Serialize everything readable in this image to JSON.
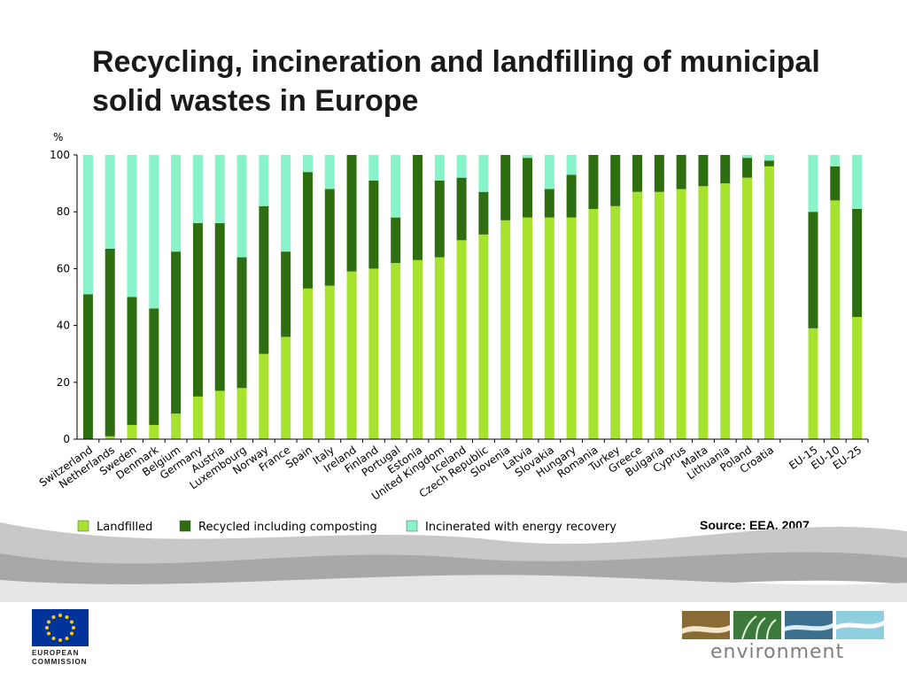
{
  "slide": {
    "title": "Recycling, incineration and landfilling of municipal solid wastes in Europe",
    "source": "Source: EEA, 2007."
  },
  "chart_data": {
    "type": "bar",
    "stacked": true,
    "ylabel": "%",
    "ylim": [
      0,
      100
    ],
    "yticks": [
      0,
      20,
      40,
      60,
      80,
      100
    ],
    "grid": false,
    "legend_position": "bottom-left",
    "categories": [
      "Switzerland",
      "Netherlands",
      "Sweden",
      "Denmark",
      "Belgium",
      "Germany",
      "Austria",
      "Luxembourg",
      "Norway",
      "France",
      "Spain",
      "Italy",
      "Ireland",
      "Finland",
      "Portugal",
      "Estonia",
      "United Kingdom",
      "Iceland",
      "Czech Republic",
      "Slovenia",
      "Latvia",
      "Slovakia",
      "Hungary",
      "Romania",
      "Turkey",
      "Greece",
      "Bulgaria",
      "Cyprus",
      "Malta",
      "Lithuania",
      "Poland",
      "Croatia",
      "",
      "EU-15",
      "EU-10",
      "EU-25"
    ],
    "series": [
      {
        "name": "Landfilled",
        "color": "#a6e22e",
        "values": [
          0,
          1,
          5,
          5,
          9,
          15,
          17,
          18,
          30,
          36,
          53,
          54,
          59,
          60,
          62,
          63,
          64,
          70,
          72,
          77,
          78,
          78,
          78,
          81,
          82,
          87,
          87,
          88,
          89,
          90,
          92,
          96,
          null,
          39,
          84,
          43
        ]
      },
      {
        "name": "Recycled including composting",
        "color": "#2e6e11",
        "values": [
          51,
          66,
          45,
          41,
          57,
          61,
          59,
          46,
          52,
          30,
          41,
          34,
          41,
          31,
          16,
          37,
          27,
          22,
          15,
          23,
          21,
          10,
          15,
          19,
          18,
          13,
          13,
          12,
          11,
          10,
          7,
          2,
          null,
          41,
          12,
          38
        ]
      },
      {
        "name": "Incinerated with energy recovery",
        "color": "#88f2c8",
        "values": [
          49,
          33,
          50,
          54,
          34,
          24,
          24,
          36,
          18,
          34,
          6,
          12,
          0,
          9,
          22,
          0,
          9,
          8,
          13,
          0,
          1,
          12,
          7,
          0,
          0,
          0,
          0,
          0,
          0,
          0,
          1,
          2,
          null,
          20,
          4,
          19
        ]
      }
    ]
  },
  "logos": {
    "ec": {
      "line1": "EUROPEAN",
      "line2": "COMMISSION",
      "flag_color": "#003399",
      "star_color": "#ffcc00"
    },
    "environment": {
      "word": "environment",
      "tile_colors": [
        "#8b6a35",
        "#3c7a3c",
        "#3d6f8e",
        "#8fcfe0"
      ]
    }
  }
}
